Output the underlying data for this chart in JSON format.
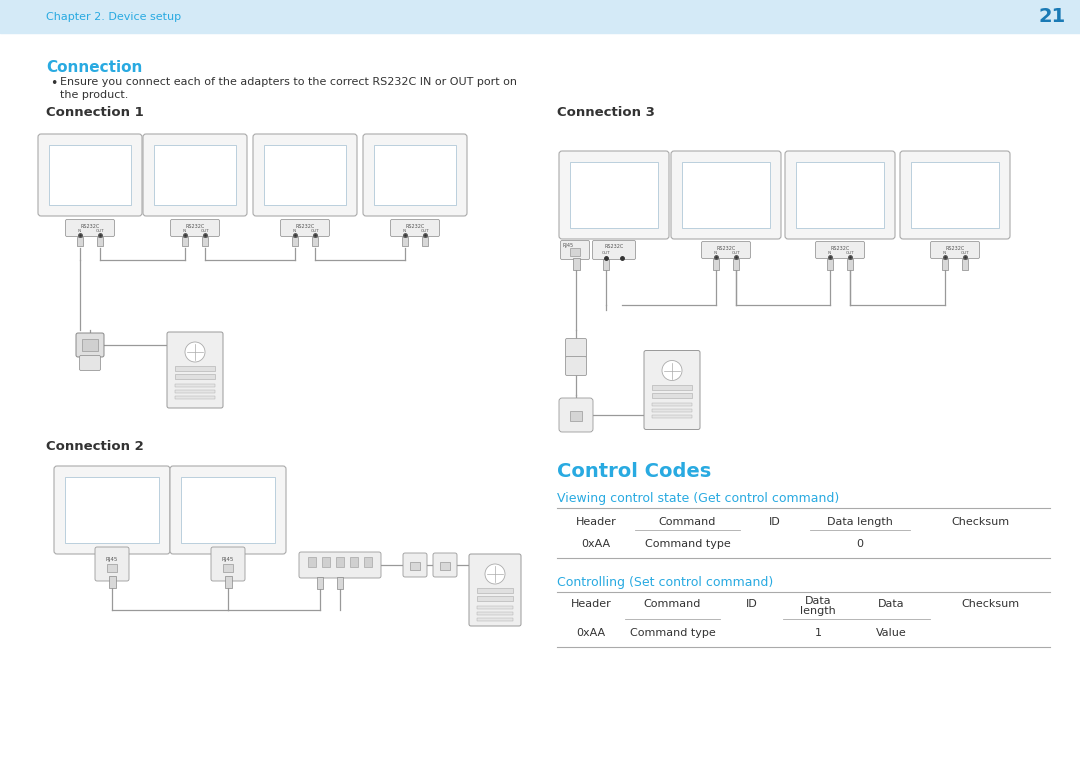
{
  "bg_color": "#f0f7fc",
  "header_bg": "#d4eaf7",
  "page_bg": "#ffffff",
  "blue_color": "#29aae1",
  "dark_blue": "#1a7ab5",
  "text_color": "#333333",
  "gray_color": "#666666",
  "cable_color": "#999999",
  "line_color": "#aaaaaa",
  "page_number": "21",
  "chapter_text": "Chapter 2. Device setup",
  "section_title": "Connection",
  "bullet_text_1": "Ensure you connect each of the adapters to the correct RS232C IN or OUT port on",
  "bullet_text_2": "the product.",
  "conn1_title": "Connection 1",
  "conn2_title": "Connection 2",
  "conn3_title": "Connection 3",
  "control_codes_title": "Control Codes",
  "view_title": "Viewing control state (Get control command)",
  "ctrl_title": "Controlling (Set control command)",
  "table1_headers": [
    "Header",
    "Command",
    "ID",
    "Data length",
    "Checksum"
  ],
  "table1_row": [
    "0xAA",
    "Command type",
    "",
    "0",
    ""
  ],
  "table2_headers": [
    "Header",
    "Command",
    "ID",
    "Data\nlength",
    "Data",
    "Checksum"
  ],
  "table2_row": [
    "0xAA",
    "Command type",
    "",
    "1",
    "Value",
    ""
  ]
}
